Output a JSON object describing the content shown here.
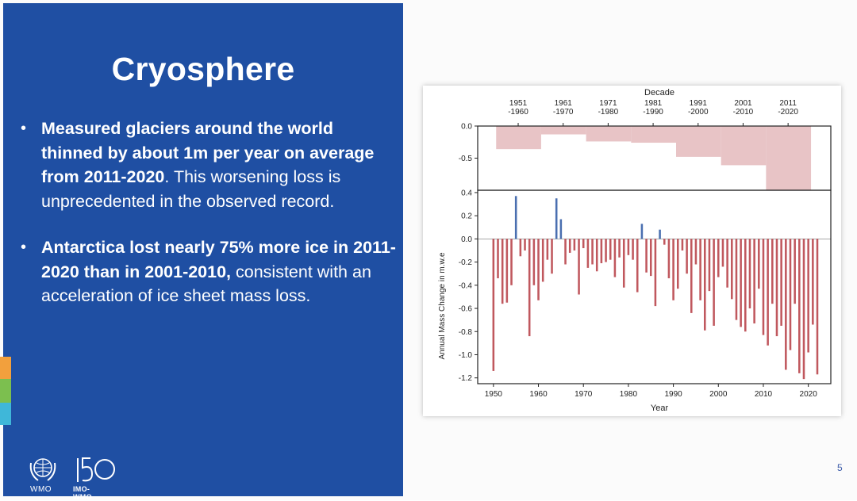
{
  "slide": {
    "title": "Cryosphere",
    "bullets": [
      {
        "bold": "Measured glaciers around the world thinned by about 1m per year on average from 2011-2020",
        "normal": ". This worsening loss is unprecedented in the observed record."
      },
      {
        "bold": "Antarctica lost nearly 75% more ice in 2011-2020 than in  2001-2010,",
        "normal": " consistent with an acceleration of ice sheet mass loss."
      }
    ],
    "logo_wmo": "WMO",
    "logo_anniversary": "IMO-WMO",
    "page_number": "5"
  },
  "colors": {
    "panel": "#1f4fa3",
    "stripe_orange": "#f2a03d",
    "stripe_green": "#7cbf4f",
    "stripe_blue": "#3fb7d9",
    "neg_bar": "#c0585e",
    "pos_bar": "#4a6fb0",
    "decade_bar": "#e8c4c6"
  },
  "chart_data": [
    {
      "type": "bar",
      "xlabel": "Decade",
      "categories": [
        "1951\n-1960",
        "1961\n-1970",
        "1971\n-1980",
        "1981\n-1990",
        "1991\n-2000",
        "2001\n-2010",
        "2011\n-2020"
      ],
      "values": [
        -0.36,
        -0.13,
        -0.24,
        -0.26,
        -0.48,
        -0.61,
        -1.0
      ],
      "yticks": [
        "0.0",
        "-0.5"
      ],
      "ylim": [
        -1.0,
        0.0
      ]
    },
    {
      "type": "bar",
      "xlabel": "Year",
      "ylabel": "Annual Mass Change in m.w.e",
      "xticks": [
        "1950",
        "1960",
        "1970",
        "1980",
        "1990",
        "2000",
        "2010",
        "2020"
      ],
      "yticks": [
        "0.4",
        "0.2",
        "0.0",
        "-0.2",
        "-0.4",
        "-0.6",
        "-0.8",
        "-1.0",
        "-1.2"
      ],
      "ylim": [
        -1.25,
        0.42
      ],
      "xlim": [
        1946.5,
        2025
      ],
      "x": [
        1950,
        1951,
        1952,
        1953,
        1954,
        1955,
        1956,
        1957,
        1958,
        1959,
        1960,
        1961,
        1962,
        1963,
        1964,
        1965,
        1966,
        1967,
        1968,
        1969,
        1970,
        1971,
        1972,
        1973,
        1974,
        1975,
        1976,
        1977,
        1978,
        1979,
        1980,
        1981,
        1982,
        1983,
        1984,
        1985,
        1986,
        1987,
        1988,
        1989,
        1990,
        1991,
        1992,
        1993,
        1994,
        1995,
        1996,
        1997,
        1998,
        1999,
        2000,
        2001,
        2002,
        2003,
        2004,
        2005,
        2006,
        2007,
        2008,
        2009,
        2010,
        2011,
        2012,
        2013,
        2014,
        2015,
        2016,
        2017,
        2018,
        2019,
        2020,
        2021,
        2022
      ],
      "values": [
        -1.14,
        -0.34,
        -0.56,
        -0.55,
        -0.4,
        0.37,
        -0.15,
        -0.1,
        -0.84,
        -0.4,
        -0.53,
        -0.37,
        -0.18,
        -0.3,
        0.35,
        0.17,
        -0.22,
        -0.12,
        -0.1,
        -0.48,
        -0.08,
        -0.25,
        -0.22,
        -0.28,
        -0.21,
        -0.2,
        -0.18,
        -0.33,
        -0.16,
        -0.42,
        -0.14,
        -0.18,
        -0.46,
        0.13,
        -0.29,
        -0.32,
        -0.58,
        0.08,
        -0.05,
        -0.34,
        -0.53,
        -0.43,
        -0.1,
        -0.3,
        -0.64,
        -0.22,
        -0.53,
        -0.79,
        -0.45,
        -0.75,
        -0.33,
        -0.24,
        -0.42,
        -0.52,
        -0.7,
        -0.76,
        -0.8,
        -0.6,
        -0.73,
        -0.43,
        -0.83,
        -0.92,
        -0.56,
        -0.84,
        -0.75,
        -1.13,
        -0.96,
        -0.56,
        -1.16,
        -1.21,
        -0.98,
        -0.74,
        -1.17
      ]
    }
  ]
}
